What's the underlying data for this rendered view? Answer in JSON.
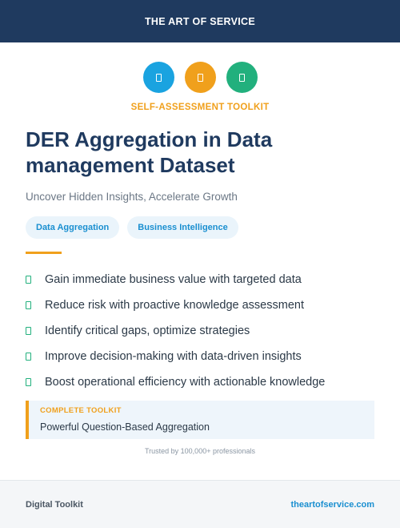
{
  "header": {
    "brand": "THE ART OF SERVICE"
  },
  "icons": [
    {
      "name": "document-icon",
      "color": "#1aa3e0"
    },
    {
      "name": "document-icon",
      "color": "#f0a01c"
    },
    {
      "name": "document-icon",
      "color": "#22b07d"
    }
  ],
  "kicker": "SELF-ASSESSMENT TOOLKIT",
  "title": "DER Aggregation in Data management Dataset",
  "subtitle": "Uncover Hidden Insights, Accelerate Growth",
  "tags": [
    "Data Aggregation",
    "Business Intelligence"
  ],
  "features": [
    "Gain immediate business value with targeted data",
    "Reduce risk with proactive knowledge assessment",
    "Identify critical gaps, optimize strategies",
    "Improve decision-making with data-driven insights",
    "Boost operational efficiency with actionable knowledge"
  ],
  "callout": {
    "label": "COMPLETE TOOLKIT",
    "text": "Powerful Question-Based Aggregation"
  },
  "trusted": "Trusted by 100,000+ professionals",
  "footer": {
    "left": "Digital Toolkit",
    "right": "theartofservice.com"
  }
}
